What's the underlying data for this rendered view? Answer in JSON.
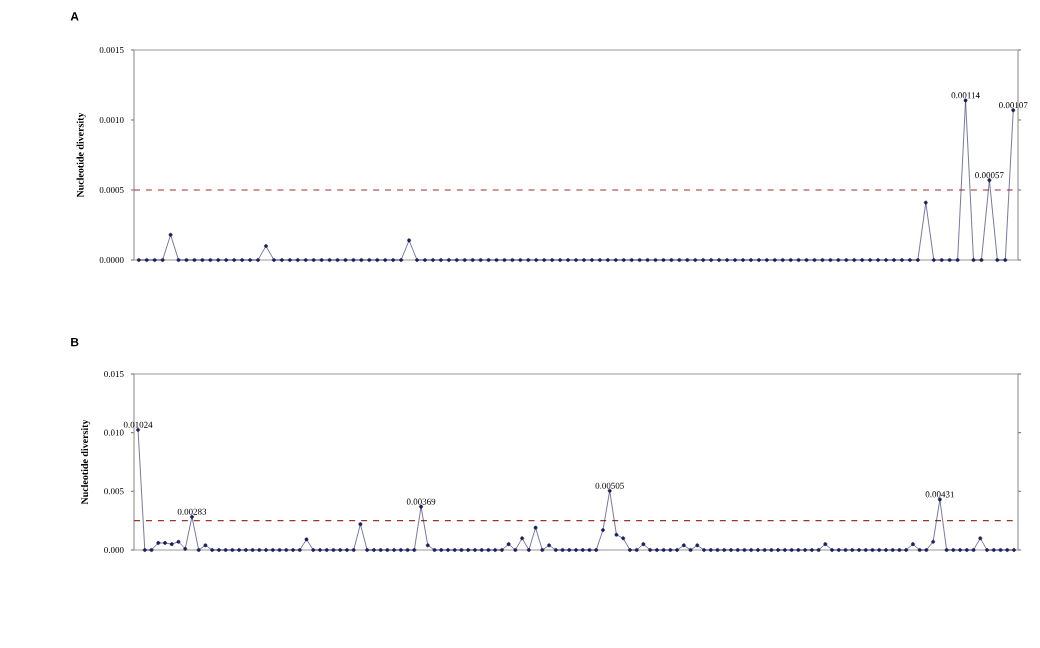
{
  "chart_data": [
    {
      "type": "line",
      "title": "A",
      "ylabel": "Nucleotide diversity",
      "color": "#1b1f5e",
      "marker": "circle",
      "categories": [
        null,
        null,
        null,
        null,
        null,
        null,
        null,
        null,
        null,
        null,
        null,
        null,
        null,
        null,
        null,
        null,
        null,
        null,
        null,
        null,
        null,
        null,
        null,
        null,
        null,
        null,
        null,
        null,
        null,
        null,
        null,
        null,
        null,
        null,
        null,
        null,
        null,
        null,
        null,
        null,
        null,
        null,
        null,
        null,
        null,
        null,
        null,
        null,
        null,
        null,
        null,
        null,
        null,
        null,
        null,
        null,
        null,
        null,
        null,
        null,
        null,
        null,
        null,
        null,
        null,
        null,
        null,
        null,
        null,
        null,
        null,
        null,
        null,
        null,
        null,
        null,
        null,
        null,
        null,
        null,
        null,
        null,
        null,
        null,
        null,
        null,
        null,
        null,
        null,
        null,
        null,
        null,
        null,
        null,
        null,
        null,
        null,
        null,
        null,
        null,
        null,
        null,
        null,
        null,
        null,
        null,
        null,
        null,
        null,
        null,
        null
      ],
      "values": [
        0,
        0,
        0,
        0,
        0.00018,
        0,
        0,
        0,
        0,
        0,
        0,
        0,
        0,
        0,
        0,
        0,
        0.0001,
        0,
        0,
        0,
        0,
        0,
        0,
        0,
        0,
        0,
        0,
        0,
        0,
        0,
        0,
        0,
        0,
        0,
        0.00014,
        0,
        0,
        0,
        0,
        0,
        0,
        0,
        0,
        0,
        0,
        0,
        0,
        0,
        0,
        0,
        0,
        0,
        0,
        0,
        0,
        0,
        0,
        0,
        0,
        0,
        0,
        0,
        0,
        0,
        0,
        0,
        0,
        0,
        0,
        0,
        0,
        0,
        0,
        0,
        0,
        0,
        0,
        0,
        0,
        0,
        0,
        0,
        0,
        0,
        0,
        0,
        0,
        0,
        0,
        0,
        0,
        0,
        0,
        0,
        0,
        0,
        0,
        0,
        0,
        0.00041,
        0,
        0,
        0,
        0,
        0.00114,
        0,
        0,
        0.00057,
        0,
        0,
        0.00107
      ],
      "value_labels": [
        null,
        null,
        null,
        null,
        null,
        null,
        null,
        null,
        null,
        null,
        null,
        null,
        null,
        null,
        null,
        null,
        null,
        null,
        null,
        null,
        null,
        null,
        null,
        null,
        null,
        null,
        null,
        null,
        null,
        null,
        null,
        null,
        null,
        null,
        null,
        null,
        null,
        null,
        null,
        null,
        null,
        null,
        null,
        null,
        null,
        null,
        null,
        null,
        null,
        null,
        null,
        null,
        null,
        null,
        null,
        null,
        null,
        null,
        null,
        null,
        null,
        null,
        null,
        null,
        null,
        null,
        null,
        null,
        null,
        null,
        null,
        null,
        null,
        null,
        null,
        null,
        null,
        null,
        null,
        null,
        null,
        null,
        null,
        null,
        null,
        null,
        null,
        null,
        null,
        null,
        null,
        null,
        null,
        null,
        null,
        null,
        null,
        null,
        null,
        null,
        null,
        null,
        null,
        null,
        "0.00114",
        null,
        null,
        "0.00057",
        null,
        null,
        "0.00107"
      ],
      "ylim": [
        0,
        0.0015
      ],
      "yticks": [
        {
          "value": 0,
          "label": "0.0000"
        },
        {
          "value": 0.0005,
          "label": "0.0005"
        },
        {
          "value": 0.001,
          "label": "0.0010"
        },
        {
          "value": 0.0015,
          "label": "0.0015"
        }
      ],
      "ref_lines": [
        {
          "axis": "y",
          "value": 0.0005,
          "color": "#a0302a",
          "line_style": "dashed"
        }
      ]
    },
    {
      "type": "line",
      "title": "B",
      "ylabel": "Nucleotide diversity",
      "color": "#1b1f5e",
      "marker": "circle",
      "categories": [
        null,
        null,
        null,
        null,
        null,
        null,
        null,
        null,
        null,
        null,
        null,
        null,
        null,
        null,
        null,
        null,
        null,
        null,
        null,
        null,
        null,
        null,
        null,
        null,
        null,
        null,
        null,
        null,
        null,
        null,
        null,
        null,
        null,
        null,
        null,
        null,
        null,
        null,
        null,
        null,
        null,
        null,
        null,
        null,
        null,
        null,
        null,
        null,
        null,
        null,
        null,
        null,
        null,
        null,
        null,
        null,
        null,
        null,
        null,
        null,
        null,
        null,
        null,
        null,
        null,
        null,
        null,
        null,
        null,
        null,
        null,
        null,
        null,
        null,
        null,
        null,
        null,
        null,
        null,
        null,
        null,
        null,
        null,
        null,
        null,
        null,
        null,
        null,
        null,
        null,
        null,
        null,
        null,
        null,
        null,
        null,
        null,
        null,
        null,
        null,
        null,
        null,
        null,
        null,
        null,
        null,
        null,
        null,
        null,
        null,
        null,
        null,
        null,
        null,
        null,
        null,
        null,
        null,
        null,
        null,
        null,
        null,
        null,
        null,
        null,
        null,
        null,
        null,
        null,
        null,
        null
      ],
      "values": [
        0.01024,
        0,
        0,
        0.0006,
        0.0006,
        0.0005,
        0.0007,
        0.0001,
        0.00283,
        0,
        0.0004,
        0,
        0,
        0,
        0,
        0,
        0,
        0,
        0,
        0,
        0,
        0,
        0,
        0,
        0,
        0.0009,
        0,
        0,
        0,
        0,
        0,
        0,
        0,
        0.0022,
        0,
        0,
        0,
        0,
        0,
        0,
        0,
        0,
        0.00369,
        0.0004,
        0,
        0,
        0,
        0,
        0,
        0,
        0,
        0,
        0,
        0,
        0,
        0.0005,
        0,
        0.001,
        0,
        0.0019,
        0,
        0.0004,
        0,
        0,
        0,
        0,
        0,
        0,
        0,
        0.0017,
        0.00505,
        0.0013,
        0.001,
        0,
        0,
        0.0005,
        0,
        0,
        0,
        0,
        0,
        0.0004,
        0,
        0.0004,
        0,
        0,
        0,
        0,
        0,
        0,
        0,
        0,
        0,
        0,
        0,
        0,
        0,
        0,
        0,
        0,
        0,
        0,
        0.0005,
        0,
        0,
        0,
        0,
        0,
        0,
        0,
        0,
        0,
        0,
        0,
        0,
        0.0005,
        0,
        0,
        0.0007,
        0.00431,
        0,
        0,
        0,
        0,
        0,
        0.001,
        0,
        0,
        0,
        0,
        0
      ],
      "value_labels": [
        "0.01024",
        null,
        null,
        null,
        null,
        null,
        null,
        null,
        "0.00283",
        null,
        null,
        null,
        null,
        null,
        null,
        null,
        null,
        null,
        null,
        null,
        null,
        null,
        null,
        null,
        null,
        null,
        null,
        null,
        null,
        null,
        null,
        null,
        null,
        null,
        null,
        null,
        null,
        null,
        null,
        null,
        null,
        null,
        "0.00369",
        null,
        null,
        null,
        null,
        null,
        null,
        null,
        null,
        null,
        null,
        null,
        null,
        null,
        null,
        null,
        null,
        null,
        null,
        null,
        null,
        null,
        null,
        null,
        null,
        null,
        null,
        null,
        "0.00505",
        null,
        null,
        null,
        null,
        null,
        null,
        null,
        null,
        null,
        null,
        null,
        null,
        null,
        null,
        null,
        null,
        null,
        null,
        null,
        null,
        null,
        null,
        null,
        null,
        null,
        null,
        null,
        null,
        null,
        null,
        null,
        null,
        null,
        null,
        null,
        null,
        null,
        null,
        null,
        null,
        null,
        null,
        null,
        null,
        null,
        null,
        null,
        null,
        "0.00431",
        null,
        null,
        null,
        null,
        null,
        null,
        null,
        null,
        null,
        null,
        null
      ],
      "ylim": [
        0,
        0.015
      ],
      "yticks": [
        {
          "value": 0,
          "label": "0.000"
        },
        {
          "value": 0.005,
          "label": "0.005"
        },
        {
          "value": 0.01,
          "label": "0.010"
        },
        {
          "value": 0.015,
          "label": "0.015"
        }
      ],
      "ref_lines": [
        {
          "axis": "y",
          "value": 0.0025,
          "color": "#a0302a",
          "line_style": "dashed"
        }
      ]
    }
  ]
}
